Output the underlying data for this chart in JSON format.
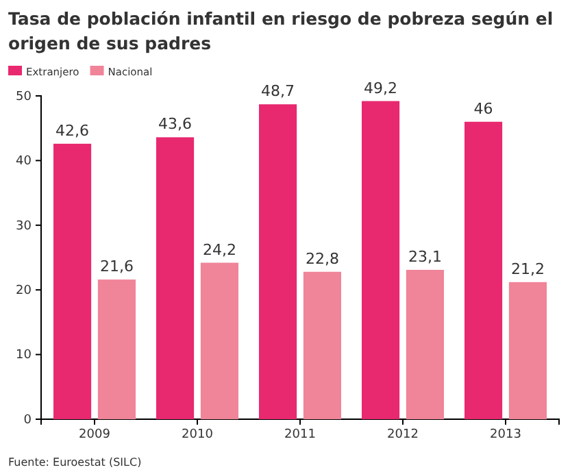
{
  "chart_data": {
    "type": "bar",
    "title": "Tasa de población infantil en riesgo de pobreza según el origen de sus padres",
    "categories": [
      "2009",
      "2010",
      "2011",
      "2012",
      "2013"
    ],
    "series": [
      {
        "name": "Extranjero",
        "color": "#e8286f",
        "values": [
          42.6,
          43.6,
          48.7,
          49.2,
          46
        ],
        "value_labels": [
          "42,6",
          "43,6",
          "48,7",
          "49,2",
          "46"
        ]
      },
      {
        "name": "Nacional",
        "color": "#f08499",
        "values": [
          21.6,
          24.2,
          22.8,
          23.1,
          21.2
        ],
        "value_labels": [
          "21,6",
          "24,2",
          "22,8",
          "23,1",
          "21,2"
        ]
      }
    ],
    "ylim": [
      0,
      50
    ],
    "yticks": [
      0,
      10,
      20,
      30,
      40,
      50
    ],
    "legend": "top left",
    "annotations": [
      "Fuente: Euroestat (SILC)"
    ]
  }
}
